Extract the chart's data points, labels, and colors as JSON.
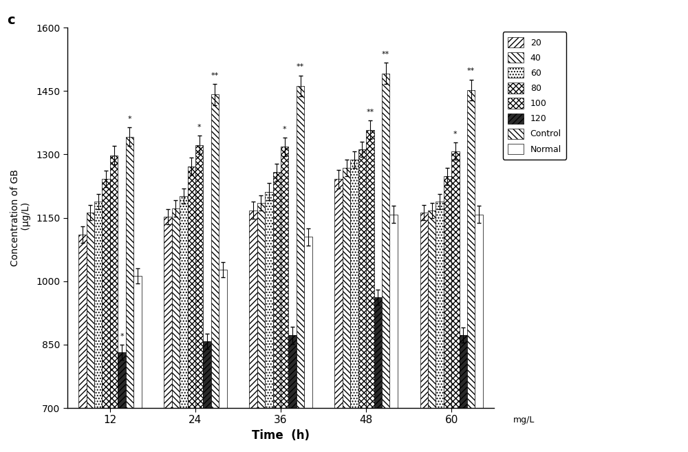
{
  "time_points": [
    12,
    24,
    36,
    48,
    60
  ],
  "series_labels": [
    "20",
    "40",
    "60",
    "80",
    "100",
    "120",
    "Control",
    "Normal"
  ],
  "values": {
    "20": [
      1110,
      1152,
      1168,
      1242,
      1162
    ],
    "40": [
      1162,
      1172,
      1185,
      1268,
      1168
    ],
    "60": [
      1188,
      1202,
      1212,
      1288,
      1188
    ],
    "80": [
      1242,
      1272,
      1258,
      1312,
      1248
    ],
    "100": [
      1298,
      1322,
      1318,
      1358,
      1308
    ],
    "120": [
      832,
      858,
      872,
      962,
      872
    ],
    "Control": [
      1342,
      1442,
      1462,
      1492,
      1452
    ],
    "Normal": [
      1012,
      1028,
      1105,
      1158,
      1158
    ]
  },
  "errors": {
    "20": [
      20,
      18,
      20,
      22,
      18
    ],
    "40": [
      18,
      20,
      18,
      20,
      18
    ],
    "60": [
      18,
      18,
      20,
      20,
      18
    ],
    "80": [
      20,
      20,
      20,
      18,
      20
    ],
    "100": [
      22,
      22,
      22,
      22,
      20
    ],
    "120": [
      18,
      18,
      20,
      18,
      18
    ],
    "Control": [
      22,
      25,
      25,
      25,
      25
    ],
    "Normal": [
      18,
      18,
      20,
      20,
      20
    ]
  },
  "annotations": {
    "12": {
      "series": [
        "120",
        "Control"
      ],
      "symbols": [
        "*",
        "*"
      ]
    },
    "24": {
      "series": [
        "100",
        "Control"
      ],
      "symbols": [
        "*",
        "**"
      ]
    },
    "36": {
      "series": [
        "100",
        "Control"
      ],
      "symbols": [
        "*",
        "**"
      ]
    },
    "48": {
      "series": [
        "100",
        "Control"
      ],
      "symbols": [
        "**",
        "**"
      ]
    },
    "60": {
      "series": [
        "100",
        "Control"
      ],
      "symbols": [
        "*",
        "**"
      ]
    }
  },
  "ylim": [
    700,
    1600
  ],
  "yticks": [
    700,
    850,
    1000,
    1150,
    1300,
    1450,
    1600
  ],
  "xlabel": "Time  (h)",
  "ylabel": "Concentration of GB\n (μg/L)",
  "title_label": "c",
  "legend_order": [
    "20",
    "40",
    "60",
    "80",
    "100",
    "120",
    "Control",
    "Normal"
  ],
  "legend_extra": "mg/L",
  "figsize": [
    10.0,
    6.57
  ],
  "dpi": 100
}
